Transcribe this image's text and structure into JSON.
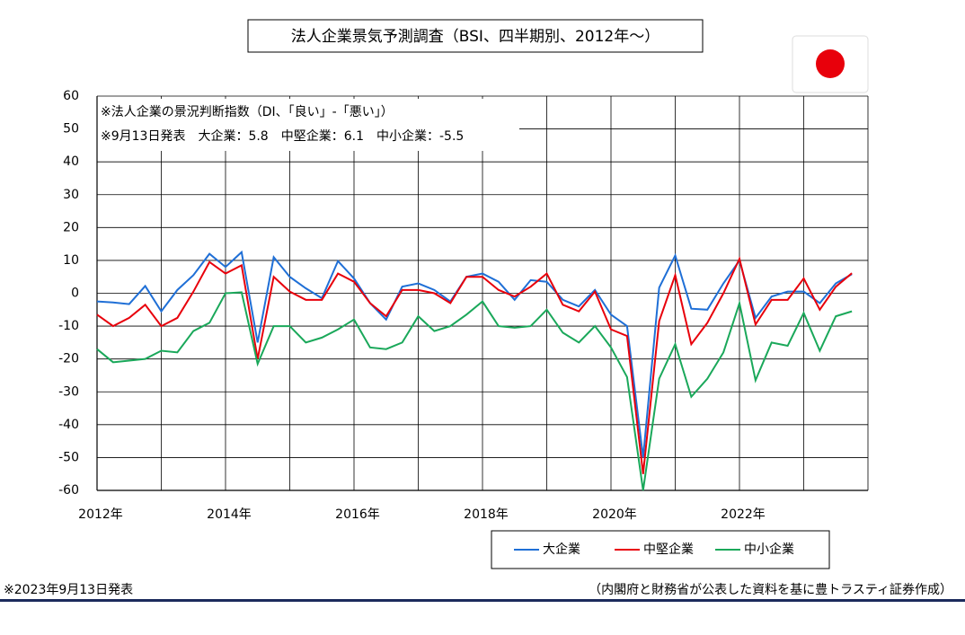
{
  "chart_data": {
    "type": "line",
    "title": "法人企業景気予測調査（BSI、四半期別、2012年～）",
    "annotations": [
      "※法人企業の景況判断指数（DI、「良い」-「悪い」）",
      "※9月13日発表　大企業：5.8　中堅企業：6.1　中小企業：-5.5"
    ],
    "footer_left": "※2023年9月13日発表",
    "footer_right": "（内閣府と財務省が公表した資料を基に豊トラスティ証券作成）",
    "x": [
      2012,
      2012.25,
      2012.5,
      2012.75,
      2013,
      2013.25,
      2013.5,
      2013.75,
      2014,
      2014.25,
      2014.5,
      2014.75,
      2015,
      2015.25,
      2015.5,
      2015.75,
      2016,
      2016.25,
      2016.5,
      2016.75,
      2017,
      2017.25,
      2017.5,
      2017.75,
      2018,
      2018.25,
      2018.5,
      2018.75,
      2019,
      2019.25,
      2019.5,
      2019.75,
      2020,
      2020.25,
      2020.5,
      2020.75,
      2021,
      2021.25,
      2021.5,
      2021.75,
      2022,
      2022.25,
      2022.5,
      2022.75,
      2023,
      2023.25,
      2023.5,
      2023.75
    ],
    "series": [
      {
        "name": "大企業",
        "color": "#1f6fd6",
        "values": [
          -2.5,
          -2.8,
          -3.3,
          2.2,
          -5.5,
          1,
          5.5,
          12,
          8,
          12.5,
          -15,
          11,
          5,
          1.5,
          -1.5,
          9.8,
          4.5,
          -3,
          -8,
          2,
          3,
          1,
          -2.5,
          5,
          6,
          3.5,
          -2,
          4,
          3.5,
          -2,
          -4,
          1,
          -6.5,
          -10,
          -50,
          1.7,
          11.5,
          -4.7,
          -5,
          3,
          10,
          -7.5,
          -1,
          0.5,
          0.5,
          -3,
          3,
          5.8
        ]
      },
      {
        "name": "中堅企業",
        "color": "#e8000b",
        "values": [
          -6.5,
          -10,
          -7.5,
          -3.5,
          -10,
          -7.5,
          0.5,
          9.5,
          6,
          8.5,
          -20,
          5,
          0.5,
          -2,
          -2,
          6,
          3.5,
          -3,
          -7,
          1,
          1,
          0,
          -3,
          5,
          5,
          1,
          -1,
          2,
          6,
          -3.5,
          -5.5,
          0.5,
          -11,
          -13,
          -55,
          -8.5,
          5.5,
          -15.5,
          -9,
          0,
          10.5,
          -9.5,
          -2,
          -2,
          4.5,
          -5,
          2,
          6.1
        ]
      },
      {
        "name": "中小企業",
        "color": "#1aa85a",
        "values": [
          -17,
          -21,
          -20.5,
          -20,
          -17.5,
          -18,
          -11.5,
          -9,
          0,
          0.3,
          -21.5,
          -10,
          -10,
          -15,
          -13.5,
          -11,
          -8,
          -16.5,
          -17,
          -15,
          -7,
          -11.5,
          -10,
          -6.5,
          -2.5,
          -10,
          -10.5,
          -10,
          -5,
          -12,
          -15,
          -10,
          -16.5,
          -25.5,
          -60,
          -26,
          -15.5,
          -31.5,
          -26,
          -18,
          -3,
          -26.5,
          -15,
          -16,
          -6,
          -17.5,
          -7,
          -5.5
        ]
      }
    ],
    "xlim": [
      2012,
      2024
    ],
    "xticks": [
      {
        "value": 2012,
        "label": "2012年"
      },
      {
        "value": 2014,
        "label": "2014年"
      },
      {
        "value": 2016,
        "label": "2016年"
      },
      {
        "value": 2018,
        "label": "2018年"
      },
      {
        "value": 2020,
        "label": "2020年"
      },
      {
        "value": 2022,
        "label": "2022年"
      }
    ],
    "xminor_ticks": [
      2013,
      2015,
      2017,
      2019,
      2021,
      2023,
      2024
    ],
    "ylim": [
      -60,
      60
    ],
    "yticks": [
      -60,
      -50,
      -40,
      -30,
      -20,
      -10,
      0,
      10,
      20,
      30,
      40,
      50,
      60
    ],
    "grid": true,
    "legend": "bottom-right"
  }
}
